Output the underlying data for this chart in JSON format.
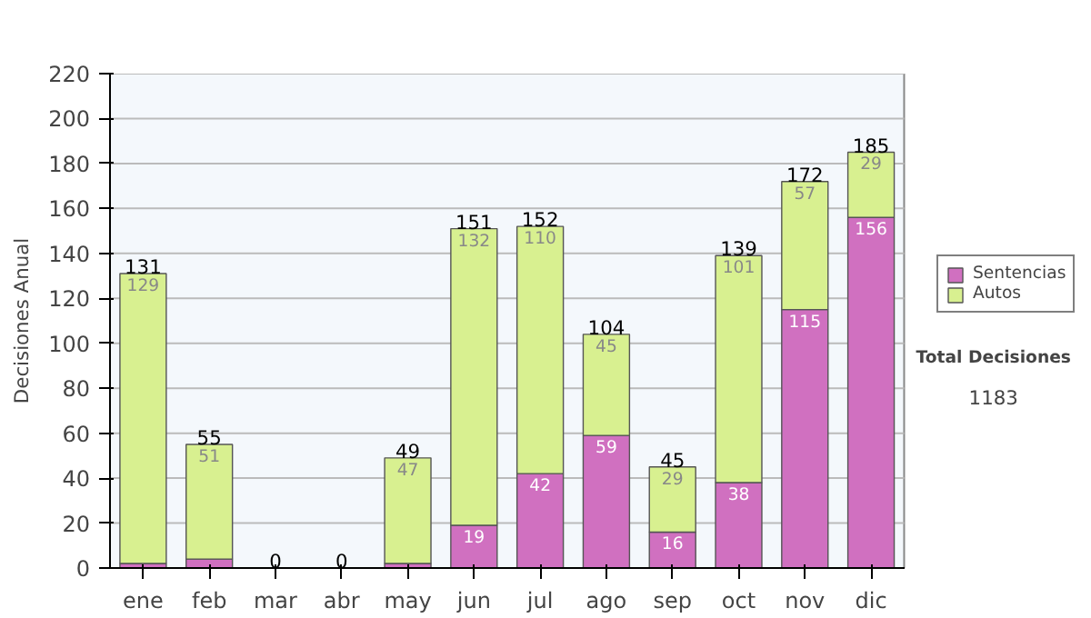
{
  "chart_data": {
    "type": "bar",
    "stacked": true,
    "ylabel": "Decisiones Anual",
    "categories": [
      "ene",
      "feb",
      "mar",
      "abr",
      "may",
      "jun",
      "jul",
      "ago",
      "sep",
      "oct",
      "nov",
      "dic"
    ],
    "series": [
      {
        "name": "Sentencias",
        "color": "#d070c0",
        "values": [
          2,
          4,
          0,
          0,
          2,
          19,
          42,
          59,
          16,
          38,
          115,
          156
        ],
        "value_labels": [
          null,
          null,
          null,
          null,
          null,
          "19",
          "42",
          "59",
          "16",
          "38",
          "115",
          "156"
        ]
      },
      {
        "name": "Autos",
        "color": "#d8f090",
        "values": [
          129,
          51,
          0,
          0,
          47,
          132,
          110,
          45,
          29,
          101,
          57,
          29
        ],
        "value_labels": [
          "129",
          "51",
          null,
          null,
          "47",
          "132",
          "110",
          "45",
          "29",
          "101",
          "57",
          "29"
        ]
      }
    ],
    "totals": [
      "131",
      "55",
      "0",
      "0",
      "49",
      "151",
      "152",
      "104",
      "45",
      "139",
      "172",
      "185"
    ],
    "ylim": [
      0,
      220
    ],
    "yticks": [
      0,
      20,
      40,
      60,
      80,
      100,
      120,
      140,
      160,
      180,
      200,
      220
    ],
    "grid": "y",
    "legend": "right",
    "annotations": [
      "Total Decisiones",
      "1183"
    ]
  }
}
